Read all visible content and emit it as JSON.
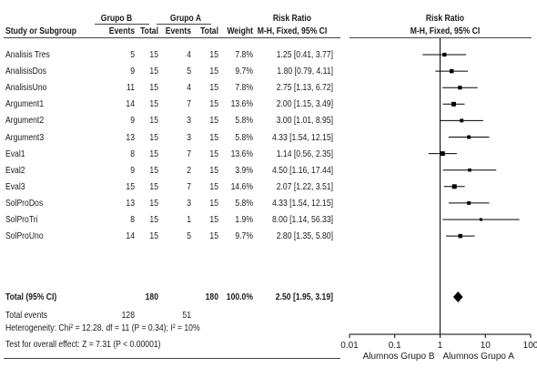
{
  "chart_data": {
    "type": "forest",
    "header": {
      "group_b": "Grupo B",
      "group_a": "Grupo A",
      "risk_ratio": "Risk Ratio",
      "study": "Study or Subgroup",
      "events": "Events",
      "total": "Total",
      "weight": "Weight",
      "method": "M-H, Fixed, 95% CI",
      "plot_title": "Risk Ratio",
      "plot_method": "M-H, Fixed, 95% CI"
    },
    "studies": [
      {
        "name": "Analisis Tres",
        "b_events": "5",
        "b_total": "15",
        "a_events": "4",
        "a_total": "15",
        "weight": "7.8%",
        "ci_text": "1.25 [0.41, 3.77]",
        "rr": 1.25,
        "lo": 0.41,
        "hi": 3.77
      },
      {
        "name": "AnalisisDos",
        "b_events": "9",
        "b_total": "15",
        "a_events": "5",
        "a_total": "15",
        "weight": "9.7%",
        "ci_text": "1.80 [0.79, 4.11]",
        "rr": 1.8,
        "lo": 0.79,
        "hi": 4.11
      },
      {
        "name": "AnalisisUno",
        "b_events": "11",
        "b_total": "15",
        "a_events": "4",
        "a_total": "15",
        "weight": "7.8%",
        "ci_text": "2.75 [1.13, 6.72]",
        "rr": 2.75,
        "lo": 1.13,
        "hi": 6.72
      },
      {
        "name": "Argument1",
        "b_events": "14",
        "b_total": "15",
        "a_events": "7",
        "a_total": "15",
        "weight": "13.6%",
        "ci_text": "2.00 [1.15, 3.49]",
        "rr": 2.0,
        "lo": 1.15,
        "hi": 3.49
      },
      {
        "name": "Argument2",
        "b_events": "9",
        "b_total": "15",
        "a_events": "3",
        "a_total": "15",
        "weight": "5.8%",
        "ci_text": "3.00 [1.01, 8.95]",
        "rr": 3.0,
        "lo": 1.01,
        "hi": 8.95
      },
      {
        "name": "Argument3",
        "b_events": "13",
        "b_total": "15",
        "a_events": "3",
        "a_total": "15",
        "weight": "5.8%",
        "ci_text": "4.33 [1.54, 12.15]",
        "rr": 4.33,
        "lo": 1.54,
        "hi": 12.15
      },
      {
        "name": "Eval1",
        "b_events": "8",
        "b_total": "15",
        "a_events": "7",
        "a_total": "15",
        "weight": "13.6%",
        "ci_text": "1.14 [0.56, 2.35]",
        "rr": 1.14,
        "lo": 0.56,
        "hi": 2.35
      },
      {
        "name": "Eval2",
        "b_events": "9",
        "b_total": "15",
        "a_events": "2",
        "a_total": "15",
        "weight": "3.9%",
        "ci_text": "4.50 [1.16, 17.44]",
        "rr": 4.5,
        "lo": 1.16,
        "hi": 17.44
      },
      {
        "name": "Eval3",
        "b_events": "15",
        "b_total": "15",
        "a_events": "7",
        "a_total": "15",
        "weight": "14.6%",
        "ci_text": "2.07 [1.22, 3.51]",
        "rr": 2.07,
        "lo": 1.22,
        "hi": 3.51
      },
      {
        "name": "SolProDos",
        "b_events": "13",
        "b_total": "15",
        "a_events": "3",
        "a_total": "15",
        "weight": "5.8%",
        "ci_text": "4.33 [1.54, 12.15]",
        "rr": 4.33,
        "lo": 1.54,
        "hi": 12.15
      },
      {
        "name": "SolProTri",
        "b_events": "8",
        "b_total": "15",
        "a_events": "1",
        "a_total": "15",
        "weight": "1.9%",
        "ci_text": "8.00 [1.14, 56.33]",
        "rr": 8.0,
        "lo": 1.14,
        "hi": 56.33
      },
      {
        "name": "SolProUno",
        "b_events": "14",
        "b_total": "15",
        "a_events": "5",
        "a_total": "15",
        "weight": "9.7%",
        "ci_text": "2.80 [1.35, 5.80]",
        "rr": 2.8,
        "lo": 1.35,
        "hi": 5.8
      }
    ],
    "total": {
      "label": "Total (95% CI)",
      "b_total": "180",
      "a_total": "180",
      "weight": "100.0%",
      "ci_text": "2.50 [1.95, 3.19]",
      "rr": 2.5,
      "lo": 1.95,
      "hi": 3.19
    },
    "total_events": {
      "label": "Total events",
      "b": "128",
      "a": "51"
    },
    "heterogeneity": "Heterogeneity: Chi² = 12.28, df = 11 (P = 0.34); I² = 10%",
    "overall_effect": "Test for overall effect: Z = 7.31 (P < 0.00001)",
    "x_axis": {
      "scale": "log",
      "range": [
        0.01,
        100
      ],
      "ticks": [
        0.01,
        0.1,
        1,
        10,
        100
      ],
      "tick_labels": [
        "0.01",
        "0.1",
        "1",
        "10",
        "100"
      ]
    },
    "favours": {
      "left": "Alumnos Grupo B",
      "right": "Alumnos Grupo A"
    },
    "colors": {
      "marker": "#000000",
      "line": "#000000"
    }
  }
}
